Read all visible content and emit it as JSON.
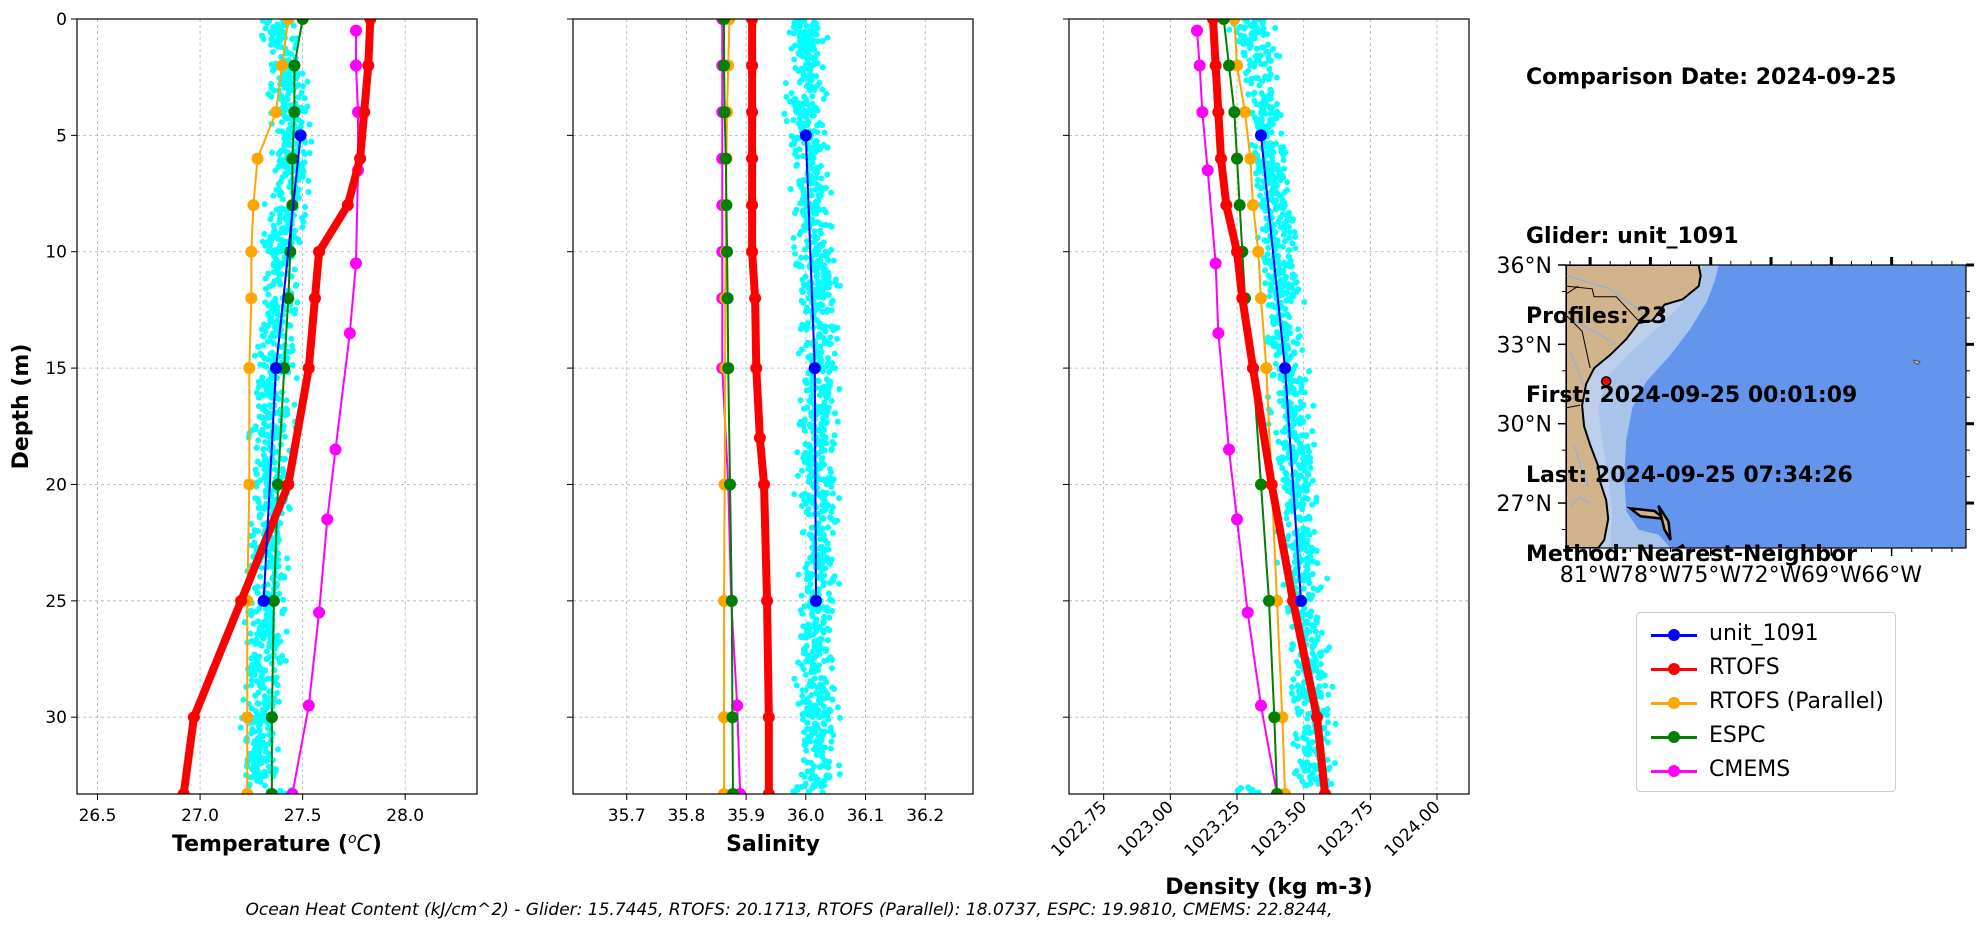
{
  "info": {
    "comparison_date": "Comparison Date: 2024-09-25",
    "glider": "Glider: unit_1091",
    "profiles": "Profiles: 23",
    "first": "First: 2024-09-25 00:01:09",
    "last": "Last: 2024-09-25 07:34:26",
    "method": "Method: Nearest-Neighbor"
  },
  "footer": "Ocean Heat Content (kJ/cm^2) - Glider: 15.7445,  RTOFS: 20.1713,  RTOFS (Parallel): 18.0737,  ESPC: 19.9810,  CMEMS: 22.8244,",
  "colors": {
    "glider": "#0000ff",
    "rtofs": "#ff0000",
    "rtofs_parallel": "#ffa500",
    "espc": "#008000",
    "cmems": "#ff00ff",
    "scatter": "#00ffff",
    "land": "#d2b48c",
    "ocean": "#6495ed",
    "shelf": "#a9c4ea"
  },
  "legend": [
    {
      "label": "unit_1091",
      "color": "#0000ff"
    },
    {
      "label": "RTOFS",
      "color": "#ff0000"
    },
    {
      "label": "RTOFS (Parallel)",
      "color": "#ffa500"
    },
    {
      "label": "ESPC",
      "color": "#008000"
    },
    {
      "label": "CMEMS",
      "color": "#ff00ff"
    }
  ],
  "map": {
    "lat_labels": [
      "36°N",
      "33°N",
      "30°N",
      "27°N"
    ],
    "lon_labels": [
      "81°W",
      "78°W",
      "75°W",
      "72°W",
      "69°W",
      "66°W"
    ],
    "glider_position": {
      "lon": -80.2,
      "lat": 31.6
    }
  },
  "chart_data": [
    {
      "type": "line",
      "xlabel": "Temperature (°C)",
      "ylabel": "Depth (m)",
      "xlim": [
        26.4,
        28.35
      ],
      "ylim": [
        33.3,
        0
      ],
      "xticks": [
        26.5,
        27.0,
        27.5,
        28.0
      ],
      "xtick_labels": [
        "26.5",
        "27.0",
        "27.5",
        "28.0"
      ],
      "yticks": [
        0,
        5,
        10,
        15,
        20,
        25,
        30
      ],
      "ytick_labels": [
        "0",
        "5",
        "10",
        "15",
        "20",
        "25",
        "30"
      ],
      "grid": true,
      "scatter": {
        "name": "glider profiles",
        "x_center": [
          27.38,
          27.43,
          27.45,
          27.44,
          27.4,
          27.38,
          27.36,
          27.35,
          27.34,
          27.33,
          27.32,
          27.3,
          27.28
        ],
        "depth": [
          0,
          3,
          5,
          7,
          9,
          12,
          15,
          18,
          21,
          24,
          27,
          30,
          33
        ]
      },
      "series": [
        {
          "name": "unit_1091",
          "depth": [
            5,
            15,
            25
          ],
          "values": [
            27.49,
            27.37,
            27.31
          ]
        },
        {
          "name": "RTOFS",
          "depth": [
            0,
            2,
            4,
            6,
            8,
            10,
            12,
            15,
            20,
            25,
            30,
            33.3
          ],
          "values": [
            27.83,
            27.82,
            27.8,
            27.78,
            27.72,
            27.58,
            27.56,
            27.53,
            27.43,
            27.2,
            26.97,
            26.92
          ]
        },
        {
          "name": "RTOFS (Parallel)",
          "depth": [
            0,
            2,
            4,
            6,
            8,
            10,
            12,
            15,
            20,
            25,
            30,
            33.3
          ],
          "values": [
            27.43,
            27.4,
            27.37,
            27.28,
            27.26,
            27.25,
            27.25,
            27.24,
            27.24,
            27.23,
            27.23,
            27.23
          ]
        },
        {
          "name": "ESPC",
          "depth": [
            0,
            2,
            4,
            6,
            8,
            10,
            12,
            15,
            20,
            25,
            30,
            33.3
          ],
          "values": [
            27.5,
            27.46,
            27.46,
            27.45,
            27.45,
            27.44,
            27.43,
            27.41,
            27.38,
            27.36,
            27.35,
            27.35
          ]
        },
        {
          "name": "CMEMS",
          "depth": [
            0.5,
            2,
            4,
            6.5,
            10.5,
            13.5,
            18.5,
            21.5,
            25.5,
            29.5,
            33.3
          ],
          "values": [
            27.76,
            27.76,
            27.77,
            27.77,
            27.76,
            27.73,
            27.66,
            27.62,
            27.58,
            27.53,
            27.45
          ]
        }
      ]
    },
    {
      "type": "line",
      "xlabel": "Salinity",
      "ylabel": "",
      "xlim": [
        35.61,
        36.28
      ],
      "ylim": [
        33.3,
        0
      ],
      "xticks": [
        35.7,
        35.8,
        35.9,
        36.0,
        36.1,
        36.2
      ],
      "xtick_labels": [
        "35.7",
        "35.8",
        "35.9",
        "36.0",
        "36.1",
        "36.2"
      ],
      "yticks": [
        0,
        5,
        10,
        15,
        20,
        25,
        30
      ],
      "grid": true,
      "scatter": {
        "name": "glider profiles",
        "x_center": [
          36.0,
          36.0,
          36.0,
          36.01,
          36.01,
          36.02,
          36.02,
          36.02,
          36.02,
          36.02,
          36.02,
          36.02,
          36.02
        ],
        "depth": [
          0,
          3,
          5,
          7,
          9,
          12,
          15,
          18,
          21,
          24,
          27,
          30,
          33
        ]
      },
      "series": [
        {
          "name": "unit_1091",
          "depth": [
            5,
            15,
            25
          ],
          "values": [
            36.0,
            36.015,
            36.017
          ]
        },
        {
          "name": "RTOFS",
          "depth": [
            0,
            2,
            4,
            6,
            8,
            10,
            12,
            15,
            18,
            20,
            25,
            30,
            33.3
          ],
          "values": [
            35.91,
            35.91,
            35.91,
            35.91,
            35.91,
            35.91,
            35.915,
            35.917,
            35.923,
            35.93,
            35.935,
            35.938,
            35.938
          ]
        },
        {
          "name": "RTOFS (Parallel)",
          "depth": [
            0,
            2,
            4,
            6,
            8,
            10,
            12,
            15,
            20,
            25,
            30,
            33.3
          ],
          "values": [
            35.872,
            35.87,
            35.868,
            35.867,
            35.866,
            35.866,
            35.865,
            35.865,
            35.864,
            35.863,
            35.863,
            35.863
          ]
        },
        {
          "name": "ESPC",
          "depth": [
            0,
            2,
            4,
            6,
            8,
            10,
            12,
            15,
            20,
            25,
            30,
            33.3
          ],
          "values": [
            35.863,
            35.863,
            35.864,
            35.866,
            35.867,
            35.868,
            35.869,
            35.87,
            35.873,
            35.876,
            35.877,
            35.878
          ]
        },
        {
          "name": "CMEMS",
          "depth": [
            0,
            2,
            4,
            6,
            8,
            10,
            12,
            15,
            20,
            25,
            29.5,
            33.3
          ],
          "values": [
            35.86,
            35.86,
            35.86,
            35.86,
            35.86,
            35.86,
            35.86,
            35.86,
            35.87,
            35.875,
            35.885,
            35.89
          ]
        }
      ]
    },
    {
      "type": "line",
      "xlabel": "Density (kg m-3)",
      "ylabel": "",
      "xlim": [
        1022.62,
        1024.12
      ],
      "ylim": [
        33.3,
        0
      ],
      "xticks": [
        1022.75,
        1023.0,
        1023.25,
        1023.5,
        1023.75,
        1024.0
      ],
      "xtick_labels": [
        "1022.75",
        "1023.00",
        "1023.25",
        "1023.50",
        "1023.75",
        "1024.00"
      ],
      "yticks": [
        0,
        5,
        10,
        15,
        20,
        25,
        30
      ],
      "grid": true,
      "scatter": {
        "name": "glider profiles",
        "x_center": [
          1023.3,
          1023.34,
          1023.36,
          1023.38,
          1023.4,
          1023.42,
          1023.44,
          1023.46,
          1023.48,
          1023.5,
          1023.52,
          1023.53,
          1023.54
        ],
        "depth": [
          0,
          3,
          5,
          7,
          9,
          12,
          15,
          18,
          21,
          24,
          27,
          30,
          33
        ]
      },
      "series": [
        {
          "name": "unit_1091",
          "depth": [
            5,
            15,
            25
          ],
          "values": [
            1023.34,
            1023.43,
            1023.49
          ]
        },
        {
          "name": "RTOFS",
          "depth": [
            0,
            2,
            4,
            6,
            8,
            10,
            12,
            15,
            20,
            25,
            30,
            33.3
          ],
          "values": [
            1023.16,
            1023.17,
            1023.18,
            1023.19,
            1023.21,
            1023.25,
            1023.27,
            1023.31,
            1023.38,
            1023.46,
            1023.55,
            1023.58
          ]
        },
        {
          "name": "RTOFS (Parallel)",
          "depth": [
            0,
            2,
            4,
            6,
            8,
            10,
            12,
            15,
            20,
            25,
            30,
            33.3
          ],
          "values": [
            1023.24,
            1023.25,
            1023.28,
            1023.3,
            1023.31,
            1023.33,
            1023.34,
            1023.36,
            1023.38,
            1023.4,
            1023.42,
            1023.43
          ]
        },
        {
          "name": "ESPC",
          "depth": [
            0,
            2,
            4,
            6,
            8,
            10,
            12,
            15,
            20,
            25,
            30,
            33.3
          ],
          "values": [
            1023.2,
            1023.22,
            1023.24,
            1023.25,
            1023.26,
            1023.27,
            1023.28,
            1023.31,
            1023.34,
            1023.37,
            1023.39,
            1023.4
          ]
        },
        {
          "name": "CMEMS",
          "depth": [
            0.5,
            2,
            4,
            6.5,
            10.5,
            13.5,
            18.5,
            21.5,
            25.5,
            29.5,
            33.3
          ],
          "values": [
            1023.1,
            1023.11,
            1023.12,
            1023.14,
            1023.17,
            1023.18,
            1023.22,
            1023.25,
            1023.29,
            1023.34,
            1023.4
          ]
        }
      ]
    }
  ]
}
